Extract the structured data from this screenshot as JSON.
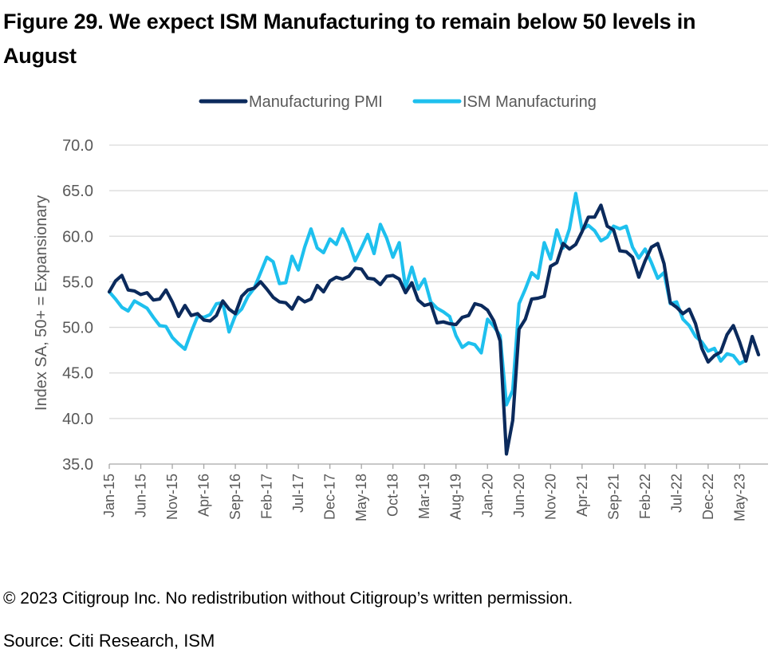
{
  "title": "Figure 29. We expect ISM Manufacturing to remain below 50 levels in August",
  "copyright": "© 2023 Citigroup Inc. No redistribution without Citigroup’s written permission.",
  "source": "Source: Citi Research, ISM",
  "colors": {
    "pmi": "#0b2a5c",
    "ism": "#1ec0ee",
    "grid": "#d9d9d9",
    "axis_text": "#595959"
  },
  "chart_data": {
    "type": "line",
    "ylabel": "Index SA, 50+ = Expansionary",
    "xlabel": "",
    "ylim": [
      35,
      70
    ],
    "yticks": [
      "70.0",
      "65.0",
      "60.0",
      "55.0",
      "50.0",
      "45.0",
      "40.0",
      "35.0"
    ],
    "legend_position": "top-center",
    "grid": true,
    "x_start": "Jan-15",
    "x_tick_labels": [
      "Jan-15",
      "Jun-15",
      "Nov-15",
      "Apr-16",
      "Sep-16",
      "Feb-17",
      "Jul-17",
      "Dec-17",
      "May-18",
      "Oct-18",
      "Mar-19",
      "Aug-19",
      "Jan-20",
      "Jun-20",
      "Nov-20",
      "Apr-21",
      "Sep-21",
      "Feb-22",
      "Jul-22",
      "Dec-22",
      "May-23"
    ],
    "series": [
      {
        "name": "Manufacturing PMI",
        "values": [
          53.9,
          55.1,
          55.7,
          54.1,
          54.0,
          53.6,
          53.8,
          53.0,
          53.1,
          54.1,
          52.8,
          51.2,
          52.4,
          51.3,
          51.5,
          50.8,
          50.7,
          51.3,
          52.9,
          52.0,
          51.5,
          53.4,
          54.1,
          54.3,
          55.0,
          54.2,
          53.3,
          52.8,
          52.7,
          52.0,
          53.3,
          52.8,
          53.1,
          54.6,
          53.9,
          55.1,
          55.5,
          55.3,
          55.6,
          56.5,
          56.4,
          55.4,
          55.3,
          54.7,
          55.6,
          55.7,
          55.3,
          53.8,
          54.9,
          53.0,
          52.4,
          52.6,
          50.5,
          50.6,
          50.4,
          50.3,
          51.1,
          51.3,
          52.6,
          52.4,
          51.9,
          50.7,
          48.5,
          36.1,
          39.8,
          49.8,
          50.9,
          53.1,
          53.2,
          53.4,
          56.7,
          57.1,
          59.2,
          58.6,
          59.1,
          60.5,
          62.1,
          62.1,
          63.4,
          61.1,
          60.7,
          58.4,
          58.3,
          57.7,
          55.5,
          57.3,
          58.8,
          59.2,
          57.0,
          52.7,
          52.2,
          51.5,
          52.0,
          50.4,
          47.7,
          46.2,
          46.9,
          47.3,
          49.2,
          50.2,
          48.4,
          46.3,
          49.0,
          47.0
        ]
      },
      {
        "name": "ISM Manufacturing",
        "values": [
          53.9,
          53.1,
          52.2,
          51.8,
          52.9,
          52.5,
          52.1,
          51.1,
          50.2,
          50.1,
          48.9,
          48.2,
          47.6,
          49.5,
          51.2,
          51.1,
          51.4,
          52.6,
          52.7,
          49.5,
          51.3,
          52.0,
          53.4,
          54.3,
          56.0,
          57.7,
          57.2,
          54.8,
          54.9,
          57.8,
          56.3,
          58.8,
          60.8,
          58.7,
          58.2,
          59.7,
          59.1,
          60.8,
          59.3,
          57.3,
          58.7,
          60.2,
          58.1,
          61.3,
          59.8,
          57.7,
          59.3,
          54.3,
          56.6,
          54.2,
          55.3,
          52.8,
          52.1,
          51.7,
          51.2,
          49.1,
          47.8,
          48.3,
          48.1,
          47.2,
          50.9,
          50.1,
          49.1,
          41.5,
          43.1,
          52.6,
          54.2,
          56.0,
          55.4,
          59.3,
          57.5,
          60.7,
          58.7,
          60.8,
          64.7,
          60.7,
          61.2,
          60.6,
          59.5,
          59.9,
          61.1,
          60.8,
          61.1,
          58.8,
          57.6,
          58.6,
          57.1,
          55.4,
          56.0,
          52.6,
          52.8,
          50.9,
          50.2,
          49.0,
          48.4,
          47.4,
          47.7,
          46.3,
          47.1,
          46.9,
          46.0,
          46.4
        ]
      }
    ]
  }
}
